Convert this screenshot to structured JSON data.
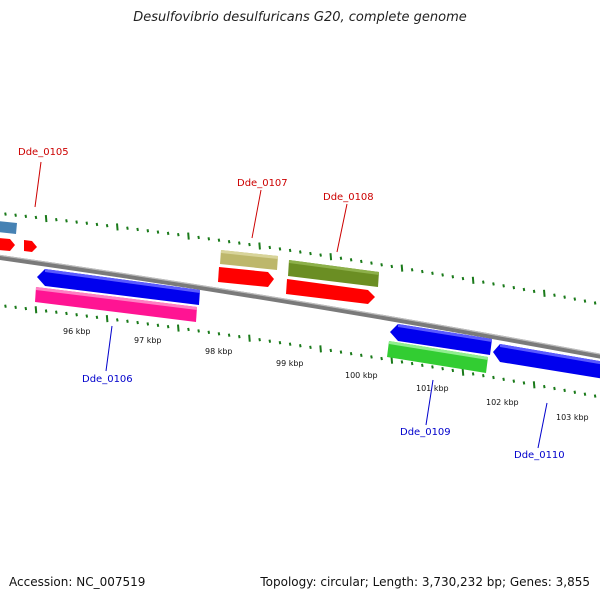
{
  "title": "Desulfovibrio desulfuricans G20, complete genome",
  "accession": "Accession: NC_007519",
  "summary": "Topology: circular; Length: 3,730,232 bp; Genes: 3,855",
  "colors": {
    "backbone": "#808080",
    "tick": "#1a7a1a",
    "label_top": "#cc0000",
    "label_bottom": "#0000cc",
    "feature_blue": "#0000ee",
    "feature_red": "#ff0000",
    "feature_pink": "#ff1493",
    "feature_tan": "#bdb76b",
    "feature_olive": "#6b8e23",
    "feature_green": "#32cd32",
    "feature_steel": "#4682b4"
  },
  "kbp_labels": [
    "96 kbp",
    "97 kbp",
    "98 kbp",
    "99 kbp",
    "100 kbp",
    "101 kbp",
    "102 kbp",
    "103 kbp"
  ],
  "gene_labels": {
    "top": [
      "Dde_0105",
      "Dde_0107",
      "Dde_0108"
    ],
    "bottom": [
      "Dde_0106",
      "Dde_0109",
      "Dde_0110"
    ]
  }
}
